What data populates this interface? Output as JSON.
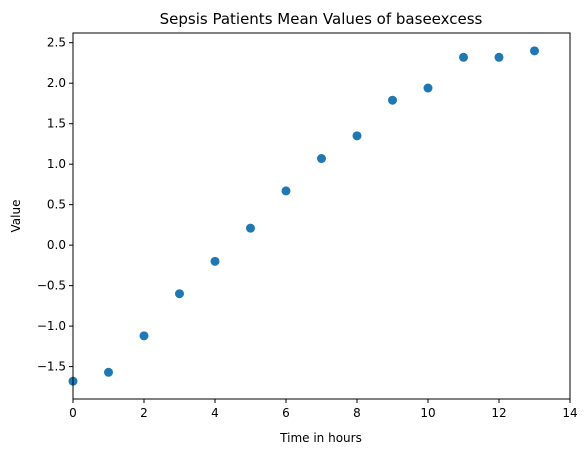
{
  "chart_data": {
    "type": "scatter",
    "title": "Sepsis Patients Mean Values of baseexcess",
    "xlabel": "Time in hours",
    "ylabel": "Value",
    "xlim": [
      0,
      14
    ],
    "ylim": [
      -1.9,
      2.62
    ],
    "xticks": [
      0,
      2,
      4,
      6,
      8,
      10,
      12,
      14
    ],
    "yticks": [
      2.5,
      2.0,
      1.5,
      1.0,
      0.5,
      0.0,
      -0.5,
      -1.0,
      -1.5
    ],
    "ytick_labels": [
      "2.5",
      "2.0",
      "1.5",
      "1.0",
      "0.5",
      "0.0",
      "−0.5",
      "−1.0",
      "−1.5"
    ],
    "grid": false,
    "marker_color": "#1f77b4",
    "x": [
      0,
      1,
      2,
      3,
      4,
      5,
      6,
      7,
      8,
      9,
      10,
      11,
      12,
      13
    ],
    "y": [
      -1.68,
      -1.57,
      -1.12,
      -0.6,
      -0.2,
      0.21,
      0.67,
      1.07,
      1.35,
      1.79,
      1.94,
      2.32,
      2.32,
      2.4
    ]
  }
}
